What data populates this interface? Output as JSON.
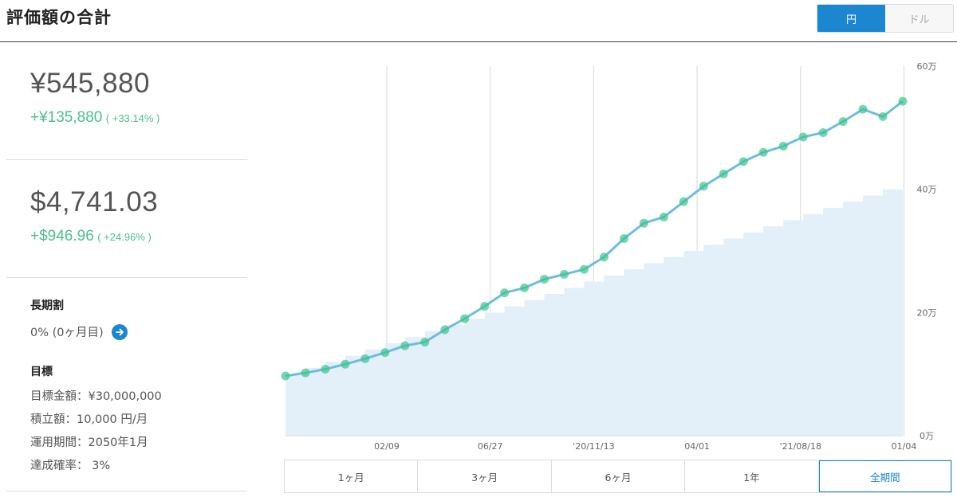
{
  "header": {
    "title": "評価額の合計"
  },
  "currency_toggle": {
    "options": [
      "円",
      "ドル"
    ],
    "selected": "円"
  },
  "summary_jpy": {
    "amount": "¥545,880",
    "change": "+¥135,880",
    "change_pct": "( +33.14% )"
  },
  "summary_usd": {
    "amount": "$4,741.03",
    "change": "+$946.96",
    "change_pct": "( +24.96% )"
  },
  "choki": {
    "heading": "長期割",
    "value": "0% (0ヶ月目)"
  },
  "goal": {
    "heading": "目標",
    "lines": [
      "目標金額：¥30,000,000",
      "積立額：10,000 円/月",
      "運用期間：2050年1月",
      "達成確率： 3%"
    ]
  },
  "range_buttons": [
    "1ヶ月",
    "3ヶ月",
    "6ヶ月",
    "1年",
    "全期間"
  ],
  "range_selected": "全期間",
  "colors": {
    "accent": "#1a87d0",
    "positive": "#4cbf8c",
    "line": "#6cbde6",
    "area": "#e3eff9",
    "dot": "#3cc48a"
  },
  "chart_data": {
    "type": "area",
    "x_tick_labels": [
      "02/09",
      "06/27",
      "'20/11/13",
      "04/01",
      "'21/08/18",
      "01/04"
    ],
    "y_tick_labels": [
      "0万",
      "20万",
      "40万",
      "60万"
    ],
    "ylim": [
      0,
      600000
    ],
    "series": [
      {
        "values": [
          100000,
          110000,
          120000,
          130000,
          140000,
          150000,
          160000,
          170000,
          180000,
          190000,
          200000,
          210000,
          220000,
          230000,
          240000,
          250000,
          260000,
          270000,
          280000,
          290000,
          300000,
          310000,
          320000,
          330000,
          340000,
          350000,
          360000,
          370000,
          380000,
          390000,
          400000,
          410000
        ]
      },
      {
        "values": [
          97000,
          102000,
          108000,
          116000,
          125000,
          135000,
          146000,
          152000,
          172000,
          190000,
          210000,
          232000,
          240000,
          254000,
          262000,
          270000,
          290000,
          320000,
          345000,
          355000,
          380000,
          405000,
          425000,
          445000,
          460000,
          470000,
          485000,
          492000,
          510000,
          530000,
          518000,
          543000
        ]
      }
    ]
  }
}
